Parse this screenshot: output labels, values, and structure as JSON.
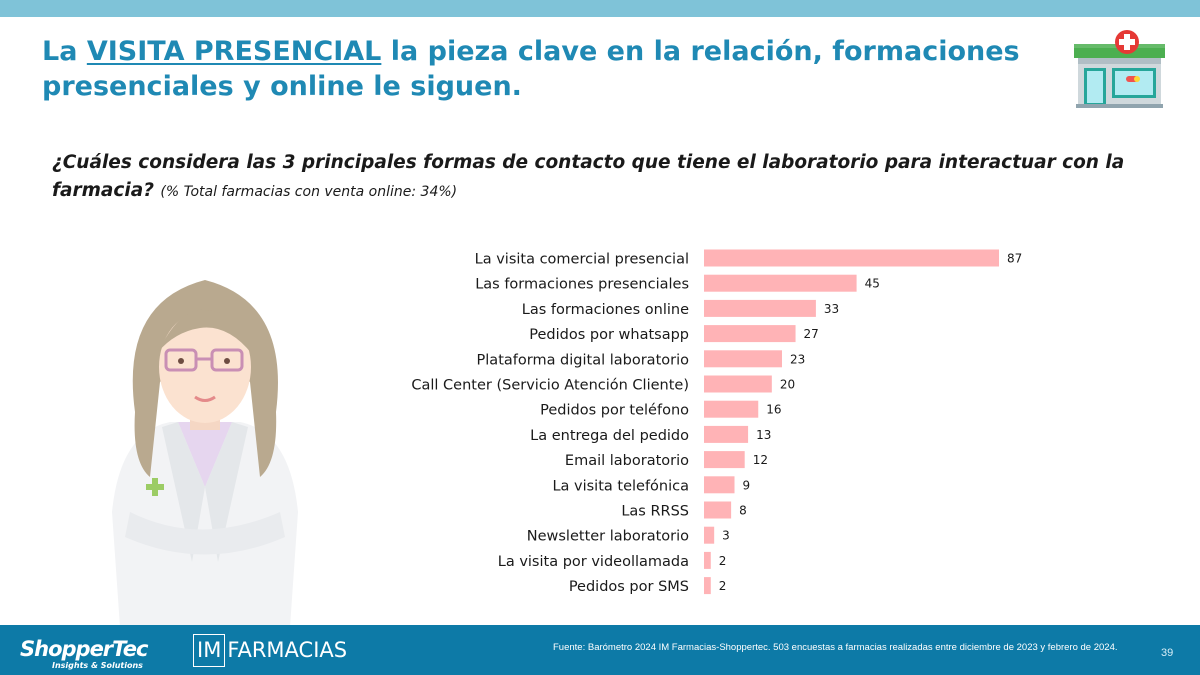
{
  "title": {
    "prefix": "La ",
    "highlight": "VISITA PRESENCIAL",
    "rest": " la pieza clave en la relación, formaciones presenciales y online le siguen."
  },
  "question": {
    "text": "¿Cuáles considera las 3 principales formas de contacto que tiene el laboratorio para interactuar con la farmacia?",
    "note": "(% Total farmacias con venta online: 34%)"
  },
  "chart_data": {
    "type": "bar",
    "orientation": "horizontal",
    "categories": [
      "La visita comercial presencial",
      "Las formaciones presenciales",
      "Las formaciones online",
      "Pedidos por whatsapp",
      "Plataforma digital laboratorio",
      "Call Center (Servicio Atención Cliente)",
      "Pedidos por teléfono",
      "La entrega del pedido",
      "Email laboratorio",
      "La visita telefónica",
      "Las RRSS",
      "Newsletter laboratorio",
      "La visita por videollamada",
      "Pedidos por SMS"
    ],
    "values": [
      87,
      45,
      33,
      27,
      23,
      20,
      16,
      13,
      12,
      9,
      8,
      3,
      2,
      2
    ],
    "xlim": [
      0,
      100
    ],
    "data_labels": true,
    "grid": false,
    "bar_color": "#ffb3b6"
  },
  "colors": {
    "title": "#1f89b4",
    "top_bar": "#7fc3d8",
    "footer": "#0d7aa7",
    "bar": "#ffb3b6"
  },
  "footer": {
    "brand1": "ShopperTec",
    "brand1_tagline": "Insights & Solutions",
    "brand2_box": "IM",
    "brand2_text": "FARMACIAS",
    "source": "Fuente: Barómetro 2024 IM Farmacias-Shoppertec. 503 encuestas a farmacias realizadas entre diciembre de 2023 y febrero de 2024.",
    "page_number": "39"
  },
  "icons": {
    "pharmacy": "pharmacy-store-icon",
    "pharmacist": "pharmacist-illustration"
  }
}
